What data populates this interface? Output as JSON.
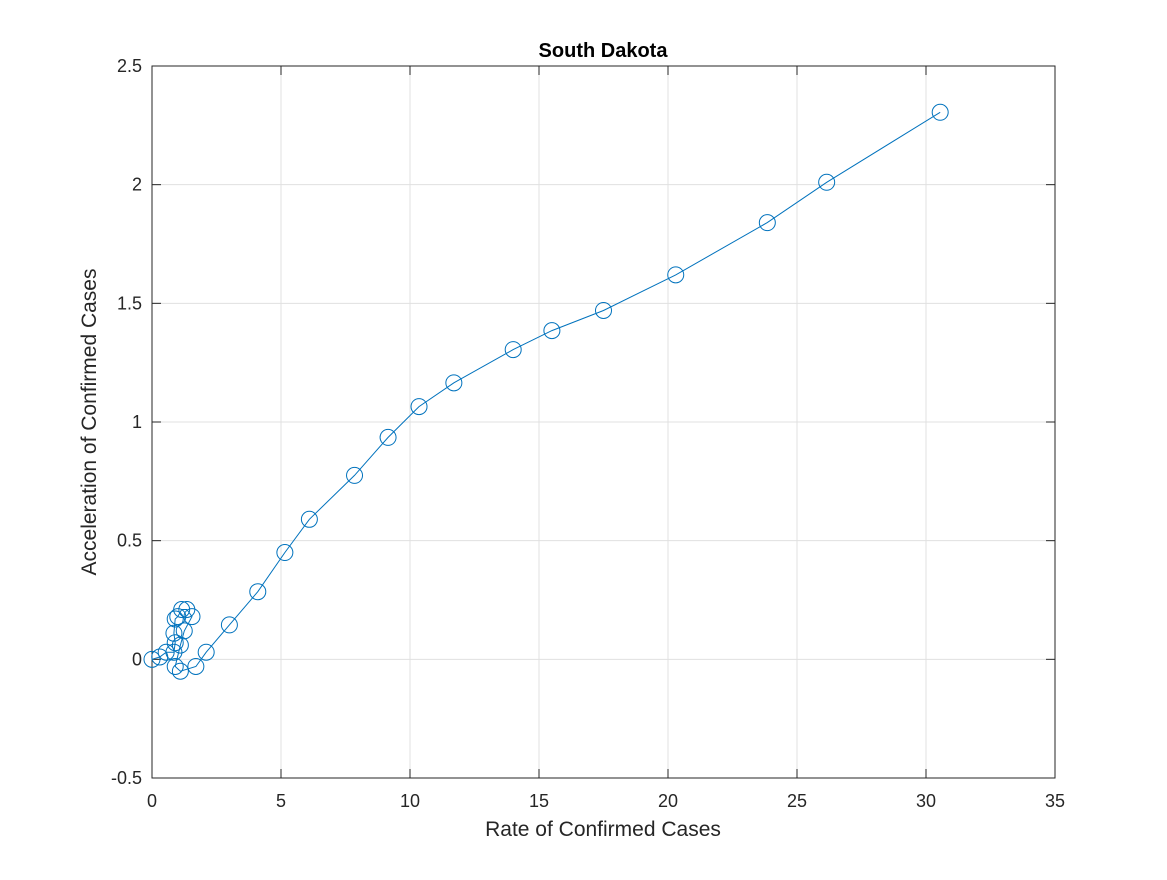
{
  "chart_data": {
    "type": "line",
    "title": "South Dakota",
    "xlabel": "Rate of Confirmed Cases",
    "ylabel": "Acceleration of Confirmed Cases",
    "xlim": [
      0,
      35
    ],
    "ylim": [
      -0.5,
      2.5
    ],
    "xticks": [
      0,
      5,
      10,
      15,
      20,
      25,
      30,
      35
    ],
    "yticks": [
      -0.5,
      0,
      0.5,
      1,
      1.5,
      2,
      2.5
    ],
    "xtick_labels": [
      "0",
      "5",
      "10",
      "15",
      "20",
      "25",
      "30",
      "35"
    ],
    "ytick_labels": [
      "-0.5",
      "0",
      "0.5",
      "1",
      "1.5",
      "2",
      "2.5"
    ],
    "grid": true,
    "marker": "circle",
    "colors": {
      "series": "#0072BD",
      "grid": "#e0e0e0",
      "axis": "#262626"
    },
    "series": [
      {
        "x": [
          0.0,
          0.3,
          0.55,
          0.85,
          0.9,
          0.85,
          0.9,
          1.0,
          1.15,
          1.35,
          1.55,
          1.25,
          1.1,
          0.9,
          1.1,
          1.7,
          2.1,
          3.0,
          4.1,
          5.15,
          6.1,
          7.85,
          9.15,
          10.35,
          11.7,
          14.0,
          15.5,
          17.5,
          20.3,
          23.85,
          26.15,
          30.55
        ],
        "y": [
          0.0,
          0.01,
          0.03,
          0.03,
          0.07,
          0.11,
          0.17,
          0.18,
          0.21,
          0.21,
          0.18,
          0.12,
          0.06,
          -0.03,
          -0.05,
          -0.03,
          0.03,
          0.145,
          0.285,
          0.45,
          0.59,
          0.775,
          0.935,
          1.065,
          1.165,
          1.305,
          1.385,
          1.47,
          1.62,
          1.84,
          2.01,
          2.305
        ]
      }
    ]
  }
}
